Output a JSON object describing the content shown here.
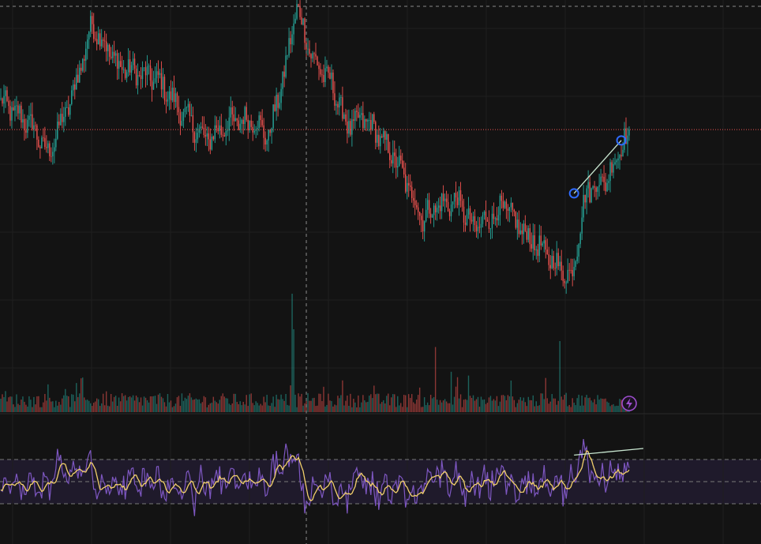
{
  "colors": {
    "background": "#131313",
    "grid": "#1f1f1f",
    "up": "#26a69a",
    "down": "#ef5350",
    "price_line": "#ef5350",
    "crosshair": "#8a8a8a",
    "trendline": "#c8e6d0",
    "pivot_marker": "#2f6bff",
    "osc_fast": "#7e57c2",
    "osc_slow": "#f2d06b",
    "osc_band_fill": "#1f1a2b",
    "osc_level": "#7a7a7a",
    "badge": "#9c4dcc"
  },
  "icons": {
    "alert_badge": "lightning-bolt-icon"
  },
  "chart_data": [
    {
      "type": "candlestick",
      "title": "",
      "grid": true,
      "crosshair": true,
      "last_price_line": true,
      "n_bars": 400,
      "ylim": [
        0,
        100
      ],
      "close_path": [
        [
          0,
          73
        ],
        [
          20,
          66
        ],
        [
          30,
          58
        ],
        [
          45,
          74
        ],
        [
          58,
          95
        ],
        [
          75,
          83
        ],
        [
          100,
          79
        ],
        [
          115,
          70
        ],
        [
          130,
          62
        ],
        [
          145,
          67
        ],
        [
          160,
          68
        ],
        [
          170,
          63
        ],
        [
          180,
          81
        ],
        [
          188,
          100
        ],
        [
          198,
          85
        ],
        [
          210,
          78
        ],
        [
          220,
          66
        ],
        [
          232,
          68
        ],
        [
          250,
          57
        ],
        [
          268,
          40
        ],
        [
          275,
          43
        ],
        [
          290,
          45
        ],
        [
          300,
          37
        ],
        [
          320,
          43
        ],
        [
          330,
          37
        ],
        [
          350,
          28
        ],
        [
          362,
          23
        ],
        [
          372,
          48
        ],
        [
          385,
          51
        ],
        [
          395,
          62
        ]
      ],
      "volume_spikes": [
        [
          185,
          1.0
        ],
        [
          186,
          0.7
        ],
        [
          276,
          0.55
        ],
        [
          355,
          0.6
        ]
      ],
      "trendline": {
        "from": [
          364,
          47
        ],
        "to": [
          394,
          62
        ]
      },
      "pivot_markers": [
        [
          364,
          47
        ],
        [
          394,
          62
        ]
      ]
    },
    {
      "type": "line",
      "title": "",
      "ylim": [
        0,
        100
      ],
      "levels": [
        70,
        50,
        30
      ],
      "series_count": 2,
      "trendline": {
        "from": [
          364,
          74
        ],
        "to": [
          408,
          80
        ]
      }
    }
  ]
}
